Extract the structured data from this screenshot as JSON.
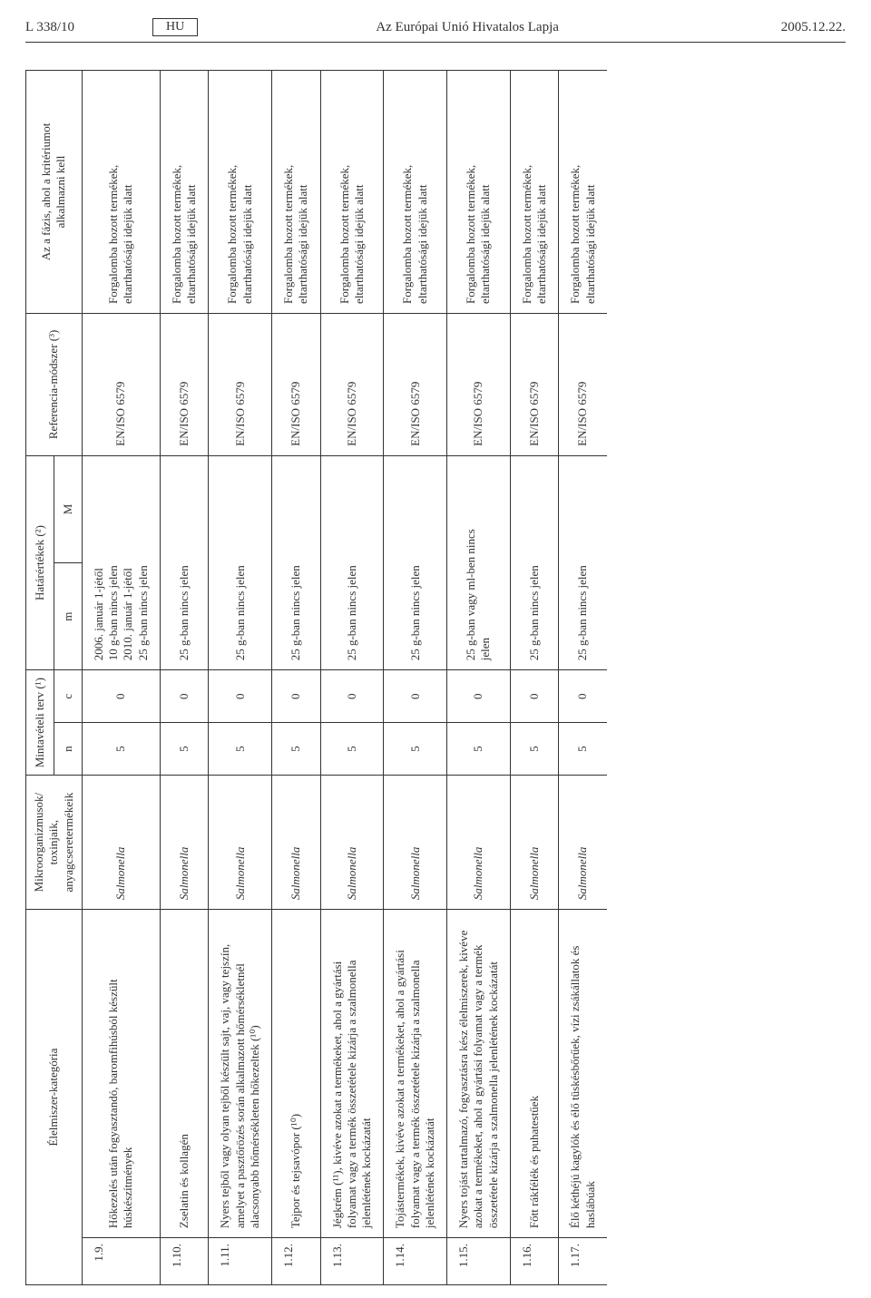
{
  "header": {
    "left": "L 338/10",
    "lang": "HU",
    "center": "Az Európai Unió Hivatalos Lapja",
    "right": "2005.12.22."
  },
  "table": {
    "columns": {
      "category": "Élelmiszer-kategória",
      "organism": "Mikroorganizmusok/\ntoxinjaik,\nanyagcseretermékeik",
      "plan": "Mintavételi terv (¹)",
      "plan_n": "n",
      "plan_c": "c",
      "limits": "Határértékek (²)",
      "limits_m": "m",
      "limits_M": "M",
      "method": "Referencia-módszer (³)",
      "phase": "Az a fázis, ahol a kritériumot\nalkalmazni kell"
    },
    "common": {
      "organism": "Salmonella",
      "method": "EN/ISO 6579",
      "phase": "Forgalomba hozott termékek,\neltarthatósági idejük alatt"
    },
    "rows": [
      {
        "num": "1.9.",
        "cat": "Hőkezelés után fogyasztandó, baromfihúsból készült húskészítmények",
        "n": "5",
        "c": "0",
        "m": "2006. január 1-jétől\n10 g-ban nincs jelen\n2010. január 1-jétől\n25 g-ban nincs jelen",
        "M": null
      },
      {
        "num": "1.10.",
        "cat": "Zselatin és kollagén",
        "n": "5",
        "c": "0",
        "m": "25 g-ban nincs jelen",
        "M": null
      },
      {
        "num": "1.11.",
        "cat": "Nyers tejből vagy olyan tejből készült sajt, vaj, vagy tejszín, amelyet a pasztőrözés során alkalmazott hőmérsékletnél alacsonyabb hőmérsékleten hőkezeltek (¹⁰)",
        "n": "5",
        "c": "0",
        "m": "25 g-ban nincs jelen",
        "M": null
      },
      {
        "num": "1.12.",
        "cat": "Tejpor és tejsavópor (¹⁰)",
        "n": "5",
        "c": "0",
        "m": "25 g-ban nincs jelen",
        "M": null
      },
      {
        "num": "1.13.",
        "cat": "Jégkrém (¹¹), kivéve azokat a termékeket, ahol a gyártási folyamat vagy a termék összetétele kizárja a szalmonella jelenlétének kockázatát",
        "n": "5",
        "c": "0",
        "m": "25 g-ban nincs jelen",
        "M": null
      },
      {
        "num": "1.14.",
        "cat": "Tojástermékek, kivéve azokat a termékeket, ahol a gyártási folyamat vagy a termék összetétele kizárja a szalmonella jelenlétének kockázatát",
        "n": "5",
        "c": "0",
        "m": "25 g-ban nincs jelen",
        "M": null
      },
      {
        "num": "1.15.",
        "cat": "Nyers tojást tartalmazó, fogyasztásra kész élelmiszerek, kivéve azokat a termékeket, ahol a gyártási folyamat vagy a termék összetétele kizárja a szalmonella jelenlétének kockázatát",
        "n": "5",
        "c": "0",
        "m": "25 g-ban vagy ml-ben nincs\njelen",
        "M": null
      },
      {
        "num": "1.16.",
        "cat": "Főtt rákfélék és puhatestűek",
        "n": "5",
        "c": "0",
        "m": "25 g-ban nincs jelen",
        "M": null
      },
      {
        "num": "1.17.",
        "cat": "Élő kéthéjú kagylók és élő tüskésbőrűek, vízi zsákállatok és haslábúak",
        "n": "5",
        "c": "0",
        "m": "25 g-ban nincs jelen",
        "M": null
      }
    ]
  }
}
